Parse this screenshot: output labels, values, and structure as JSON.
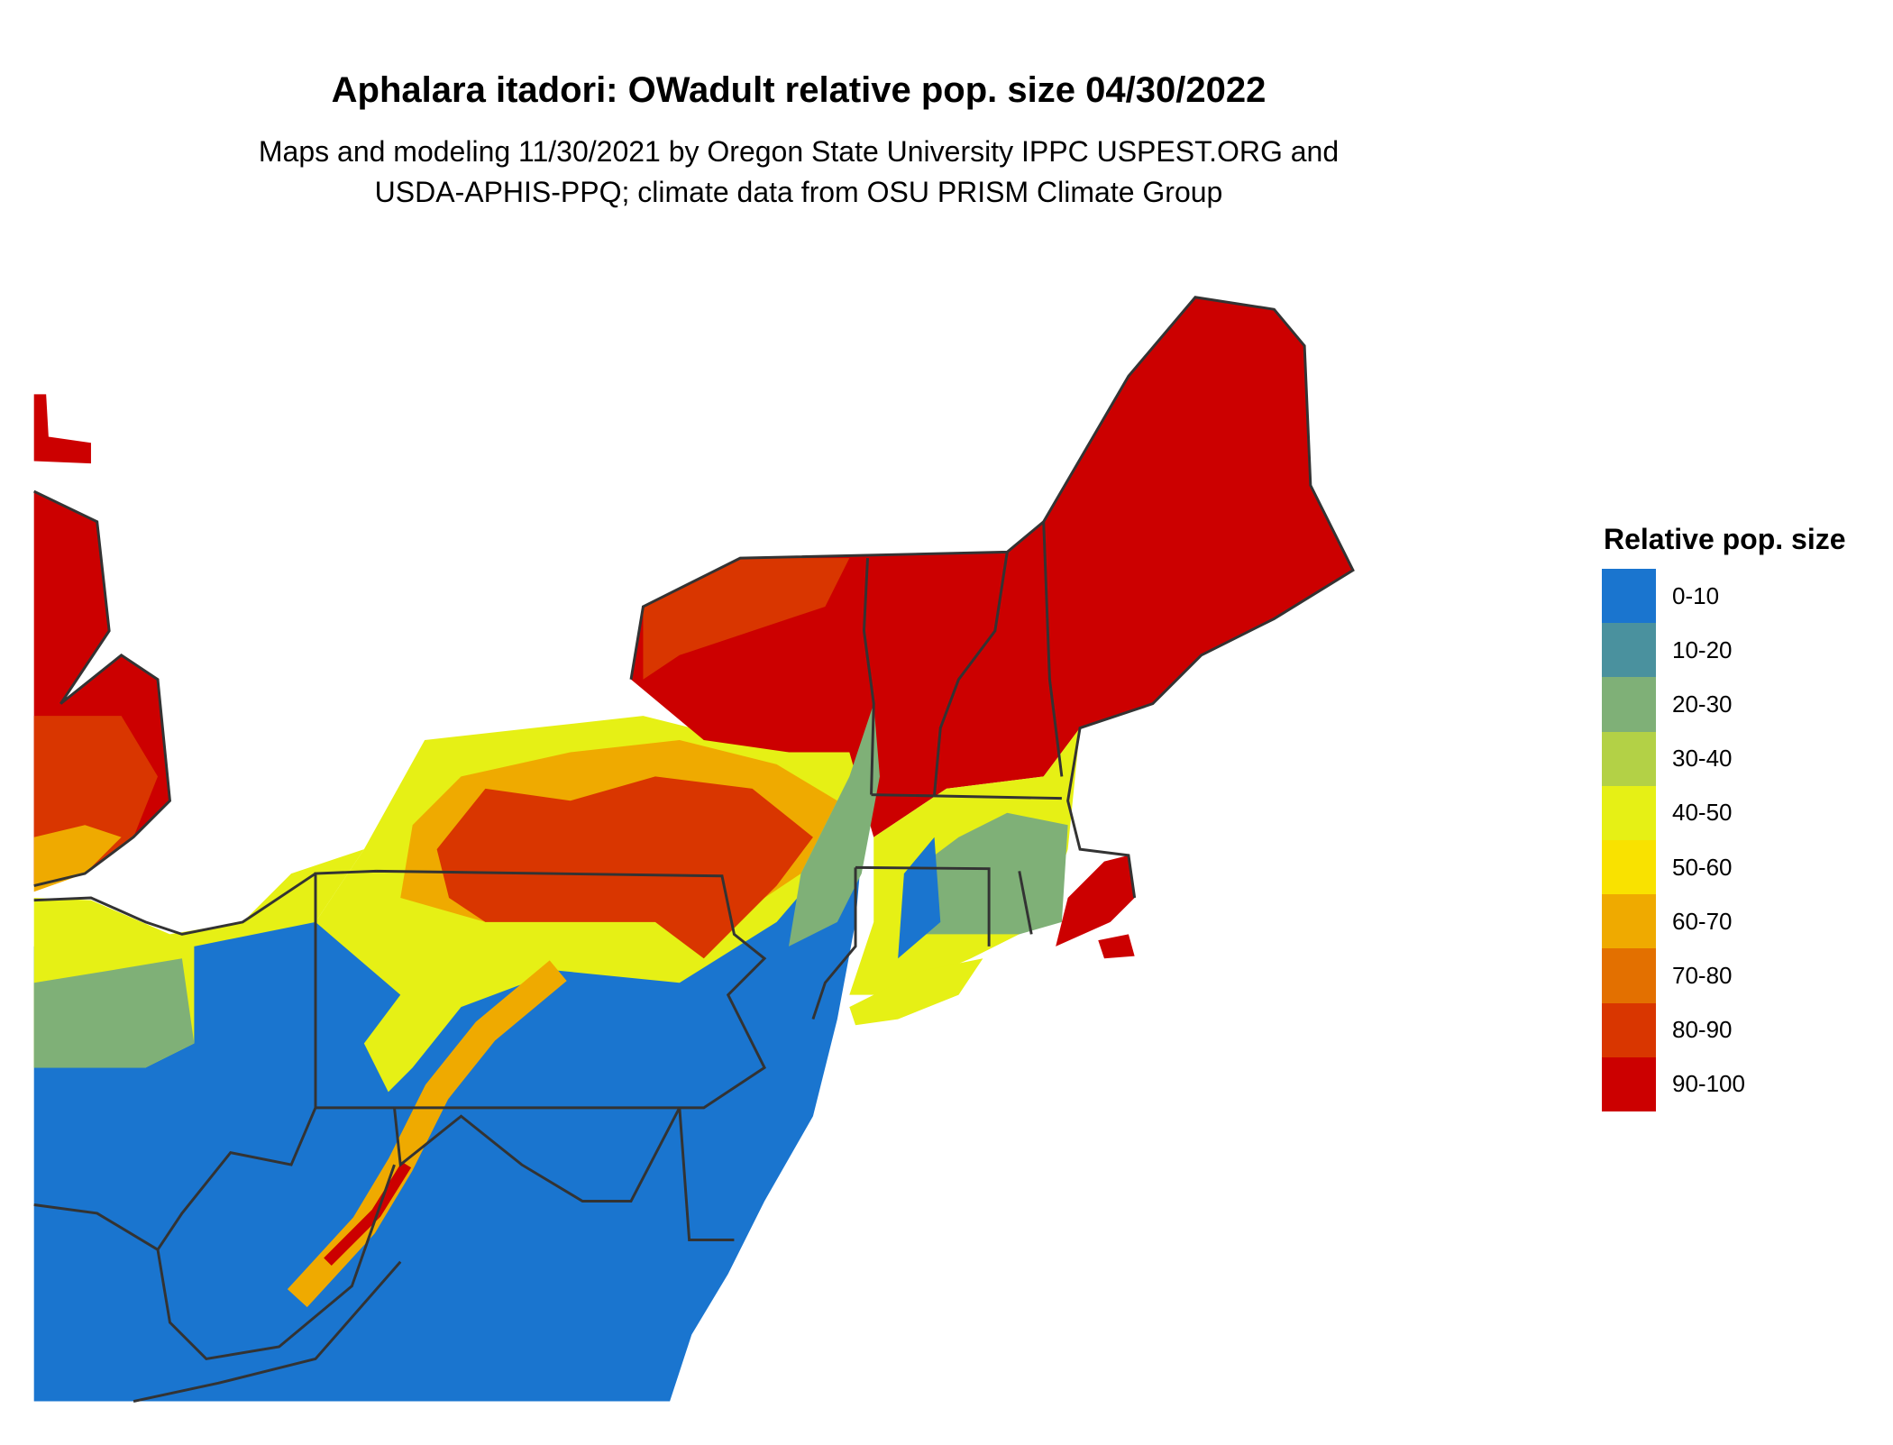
{
  "title": "Aphalara itadori: OWadult relative pop. size 04/30/2022",
  "subtitle_line1": "Maps and modeling 11/30/2021 by Oregon State University IPPC USPEST.ORG and",
  "subtitle_line2": "USDA-APHIS-PPQ; climate data from OSU PRISM Climate Group",
  "legend": {
    "title": "Relative pop. size",
    "items": [
      {
        "label": "0-10",
        "color": "#1a75cf"
      },
      {
        "label": "10-20",
        "color": "#4a919e"
      },
      {
        "label": "20-30",
        "color": "#7fb077"
      },
      {
        "label": "30-40",
        "color": "#b3d146"
      },
      {
        "label": "40-50",
        "color": "#e6f015"
      },
      {
        "label": "50-60",
        "color": "#f9e200"
      },
      {
        "label": "60-70",
        "color": "#efaa00"
      },
      {
        "label": "70-80",
        "color": "#e37000"
      },
      {
        "label": "80-90",
        "color": "#d93600"
      },
      {
        "label": "90-100",
        "color": "#cc0000"
      }
    ]
  },
  "map": {
    "region": "Northeastern United States",
    "border_color": "#333333"
  }
}
